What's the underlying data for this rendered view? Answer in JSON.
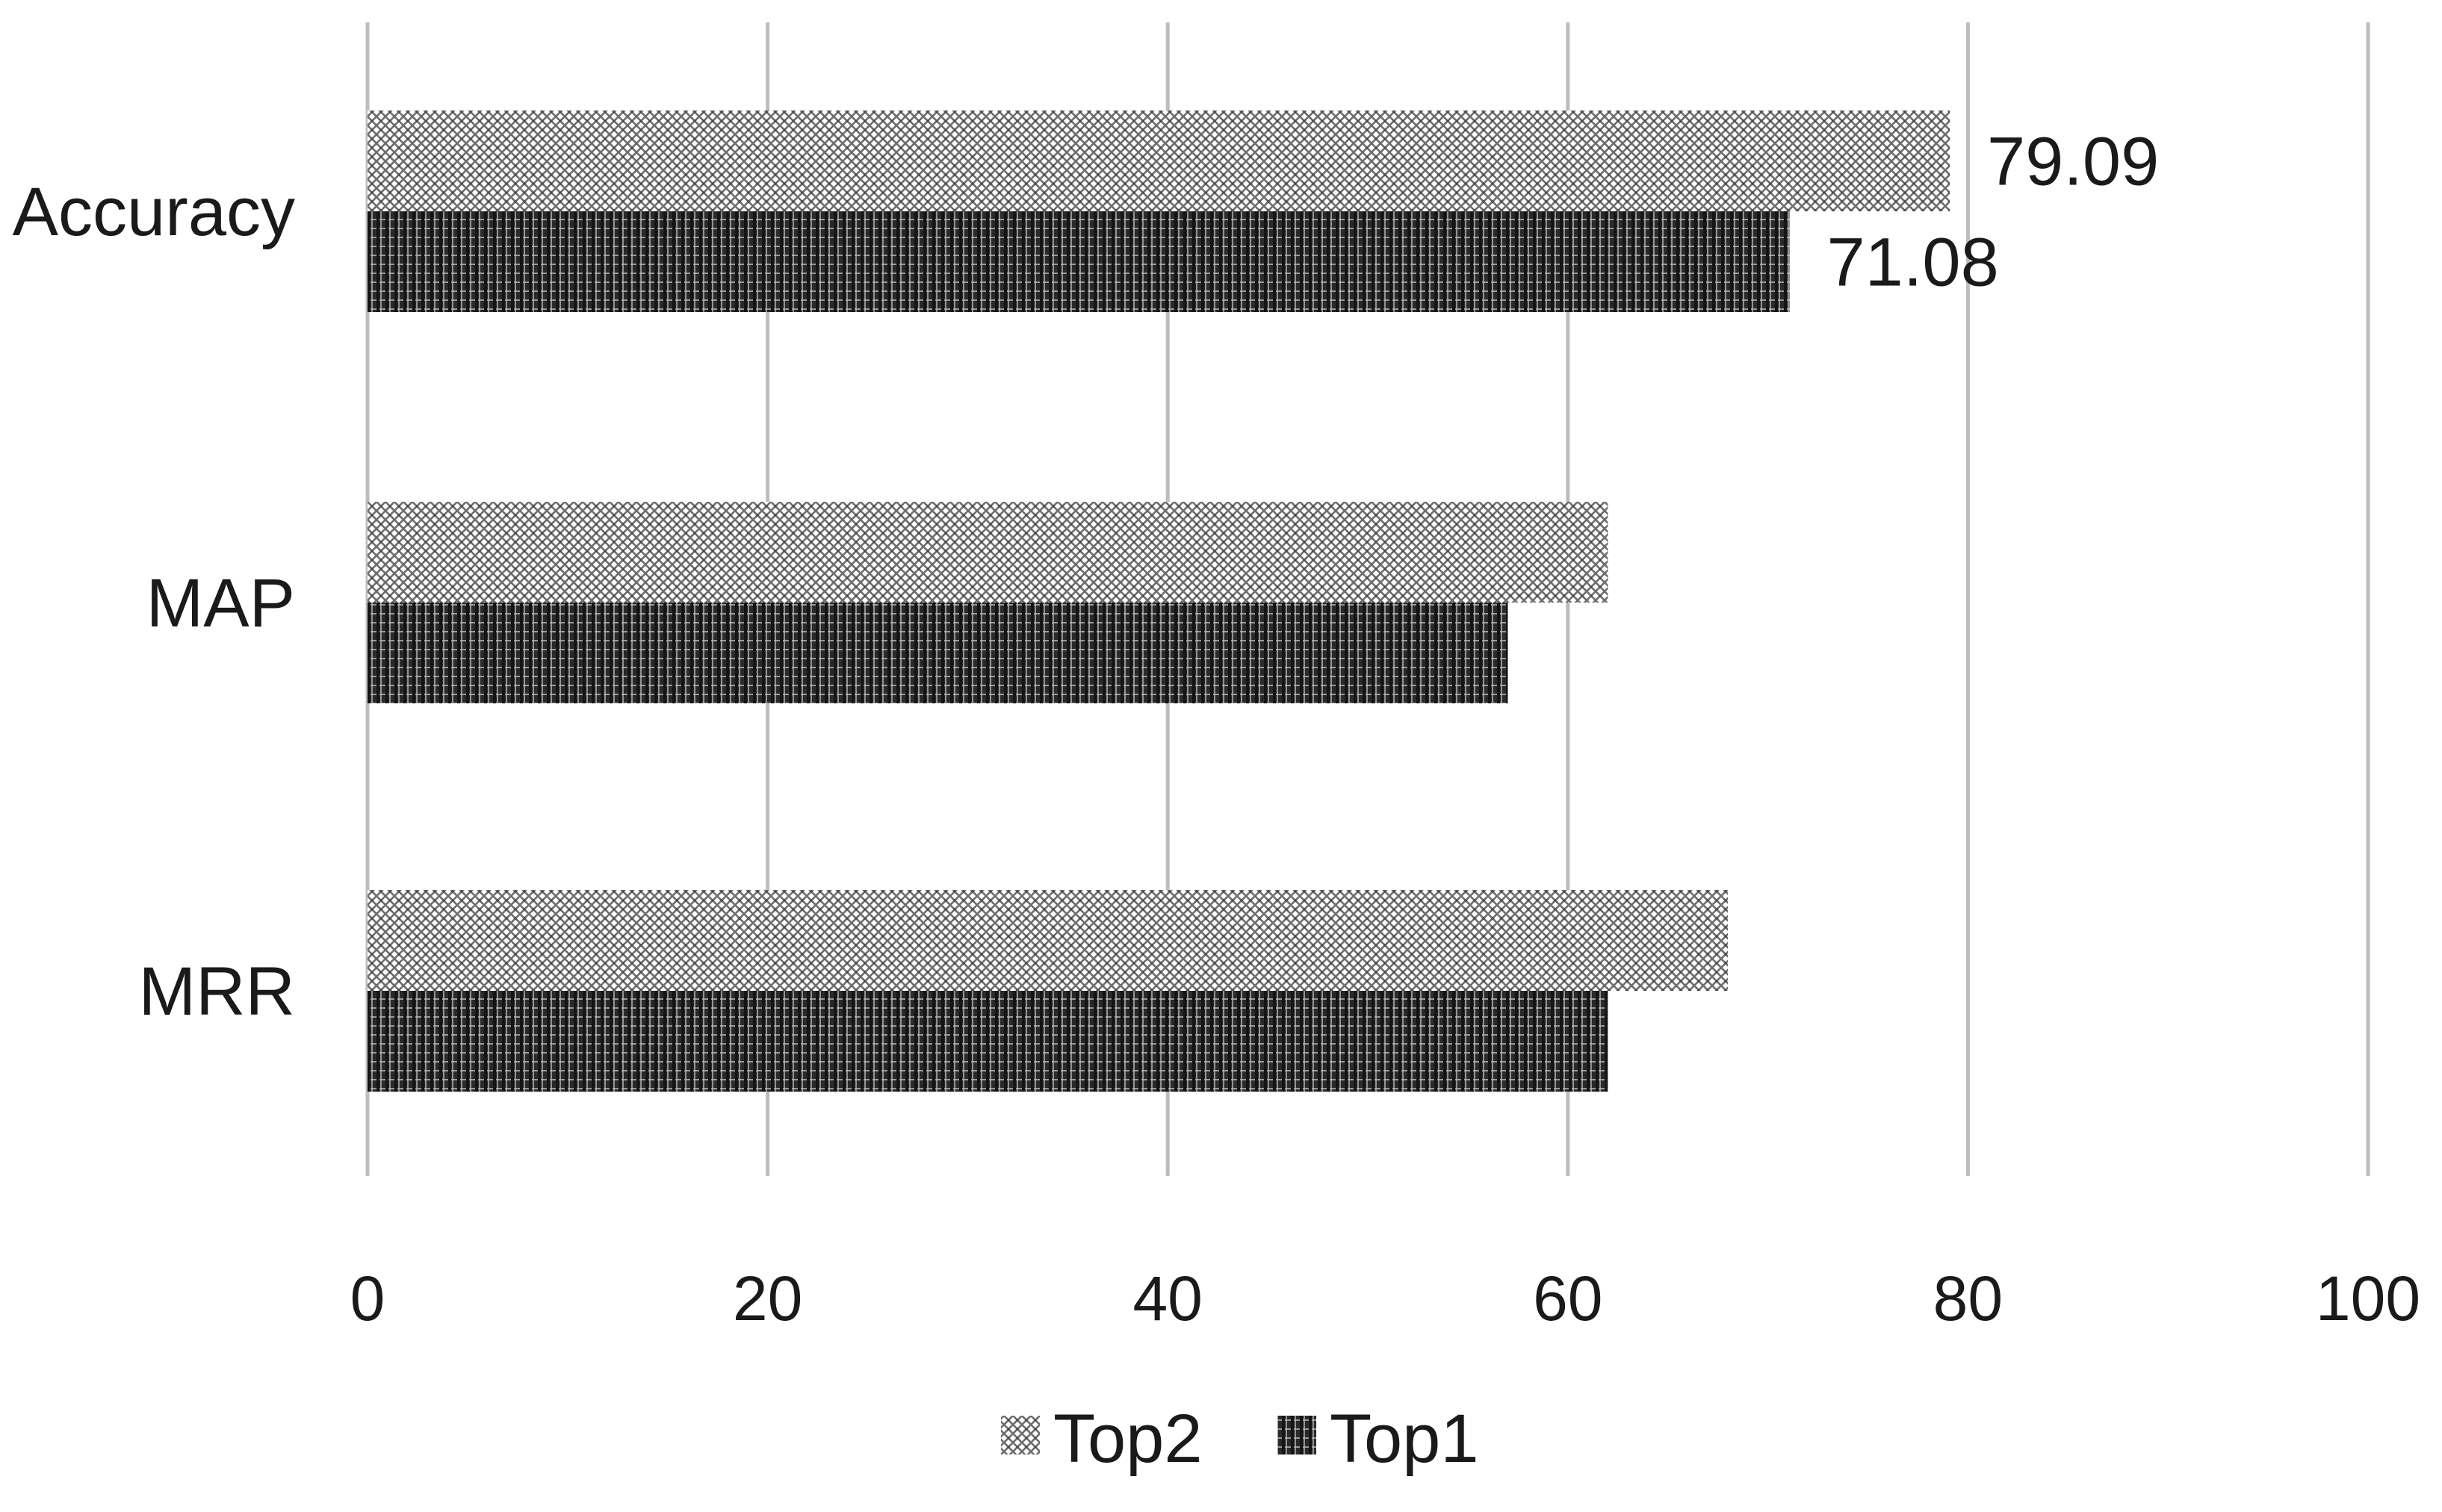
{
  "chart_data": {
    "type": "bar",
    "orientation": "horizontal",
    "categories": [
      "Accuracy",
      "MAP",
      "MRR"
    ],
    "series": [
      {
        "name": "Top2",
        "values": [
          79.09,
          62,
          68
        ],
        "labels": [
          "79.09",
          "",
          ""
        ],
        "pattern": "crosshatch-light"
      },
      {
        "name": "Top1",
        "values": [
          71.08,
          57,
          62
        ],
        "labels": [
          "71.08",
          "",
          ""
        ],
        "pattern": "dense-dark"
      }
    ],
    "xlim": [
      0,
      100
    ],
    "xticks": [
      "0",
      "20",
      "40",
      "60",
      "80",
      "100"
    ],
    "grid": "vertical",
    "legend": "bottom-center",
    "title": "",
    "xlabel": "",
    "ylabel": "",
    "colors": {
      "top2": "#8a8a8a",
      "top1": "#2a2a2a",
      "grid": "#bdbdbd"
    }
  }
}
